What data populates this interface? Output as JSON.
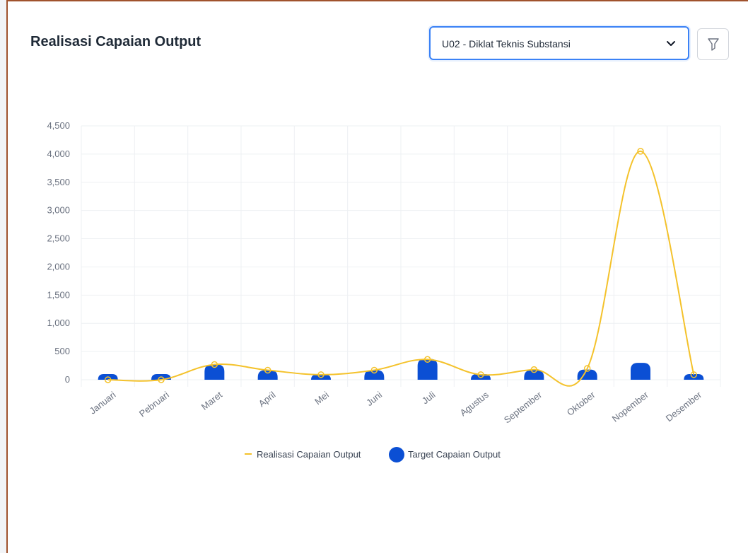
{
  "card": {
    "title": "Realisasi Capaian Output"
  },
  "filter": {
    "selected": "U02 - Diklat Teknis Substansi",
    "icons": {
      "dropdown": "chevron-down-icon",
      "filter": "filter-icon"
    }
  },
  "chart_data": {
    "type": "line",
    "title": "Realisasi Capaian Output",
    "xlabel": "",
    "ylabel": "",
    "categories": [
      "Januari",
      "Pebruari",
      "Maret",
      "April",
      "Mei",
      "Juni",
      "Juli",
      "Agustus",
      "September",
      "Oktober",
      "Nopember",
      "Desember"
    ],
    "ylim": [
      0,
      4500
    ],
    "yticks": [
      "0",
      "500",
      "1,000",
      "1,500",
      "2,000",
      "2,500",
      "3,000",
      "3,500",
      "4,000",
      "4,500"
    ],
    "grid": true,
    "legend_position": "bottom",
    "series": [
      {
        "name": "Realisasi Capaian Output",
        "kind": "smooth-line",
        "color": "#f4c22b",
        "values": [
          0,
          0,
          270,
          170,
          90,
          170,
          360,
          90,
          180,
          200,
          4050,
          90
        ]
      },
      {
        "name": "Target Capaian Output",
        "kind": "bar",
        "color": "#0b4fd4",
        "values": [
          100,
          100,
          270,
          170,
          90,
          170,
          370,
          100,
          170,
          180,
          300,
          100
        ]
      }
    ]
  }
}
